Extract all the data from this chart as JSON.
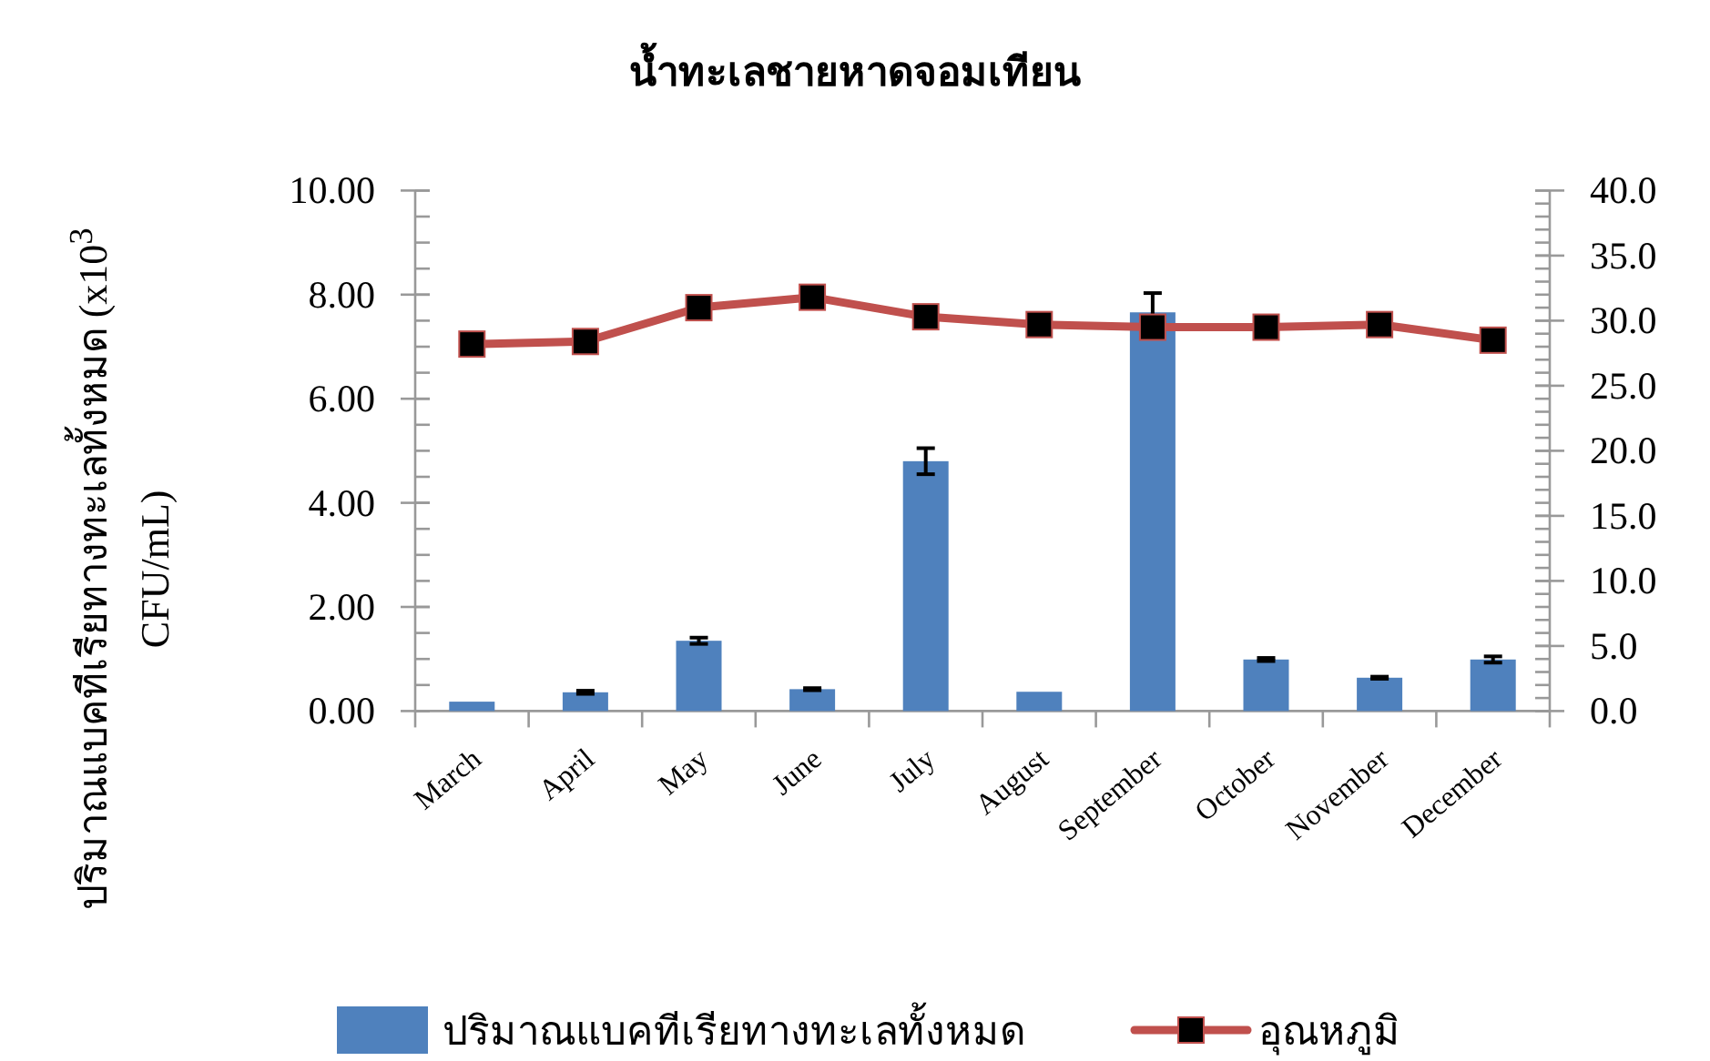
{
  "chart_data": {
    "type": "bar",
    "title": "น้ำทะเลชายหาดจอมเทียน",
    "ylabel": "ปริมาณแบคทีเรียทางทะเลทั้งหมด (x10$^{3}$ CFU/mL)",
    "categories": [
      "March",
      "April",
      "May",
      "June",
      "July",
      "August",
      "September",
      "October",
      "November",
      "December"
    ],
    "series": [
      {
        "name": "ปริมาณแบคทีเรียทางทะเลทั้งหมด",
        "color": "#4f81bd",
        "values": [
          0.18,
          0.36,
          1.35,
          0.42,
          4.8,
          0.37,
          7.66,
          0.99,
          0.64,
          0.99
        ],
        "errors": [
          null,
          0.03,
          0.06,
          0.02,
          0.25,
          null,
          0.37,
          0.03,
          0.02,
          0.06
        ]
      },
      {
        "name": "อุณหภูมิ",
        "type": "line",
        "axis": "y2",
        "color": "#c0504d",
        "marker": "square",
        "values": [
          28.2,
          28.4,
          31.0,
          31.8,
          30.3,
          29.7,
          29.5,
          29.5,
          29.7,
          28.5
        ]
      }
    ],
    "ylim": [
      0,
      10
    ],
    "yticks": [
      {
        "value": 0,
        "label": "0.00"
      },
      {
        "value": 2,
        "label": "2.00"
      },
      {
        "value": 4,
        "label": "4.00"
      },
      {
        "value": 6,
        "label": "6.00"
      },
      {
        "value": 8,
        "label": "8.00"
      },
      {
        "value": 10,
        "label": "10.00"
      }
    ],
    "y2lim": [
      0,
      40
    ],
    "y2ticks": [
      {
        "value": 0,
        "label": "0.0"
      },
      {
        "value": 5,
        "label": "5.0"
      },
      {
        "value": 10,
        "label": "10.0"
      },
      {
        "value": 15,
        "label": "15.0"
      },
      {
        "value": 20,
        "label": "20.0"
      },
      {
        "value": 25,
        "label": "25.0"
      },
      {
        "value": 30,
        "label": "30.0"
      },
      {
        "value": 35,
        "label": "35.0"
      },
      {
        "value": 40,
        "label": "40.0"
      }
    ],
    "legend": "bottom"
  }
}
